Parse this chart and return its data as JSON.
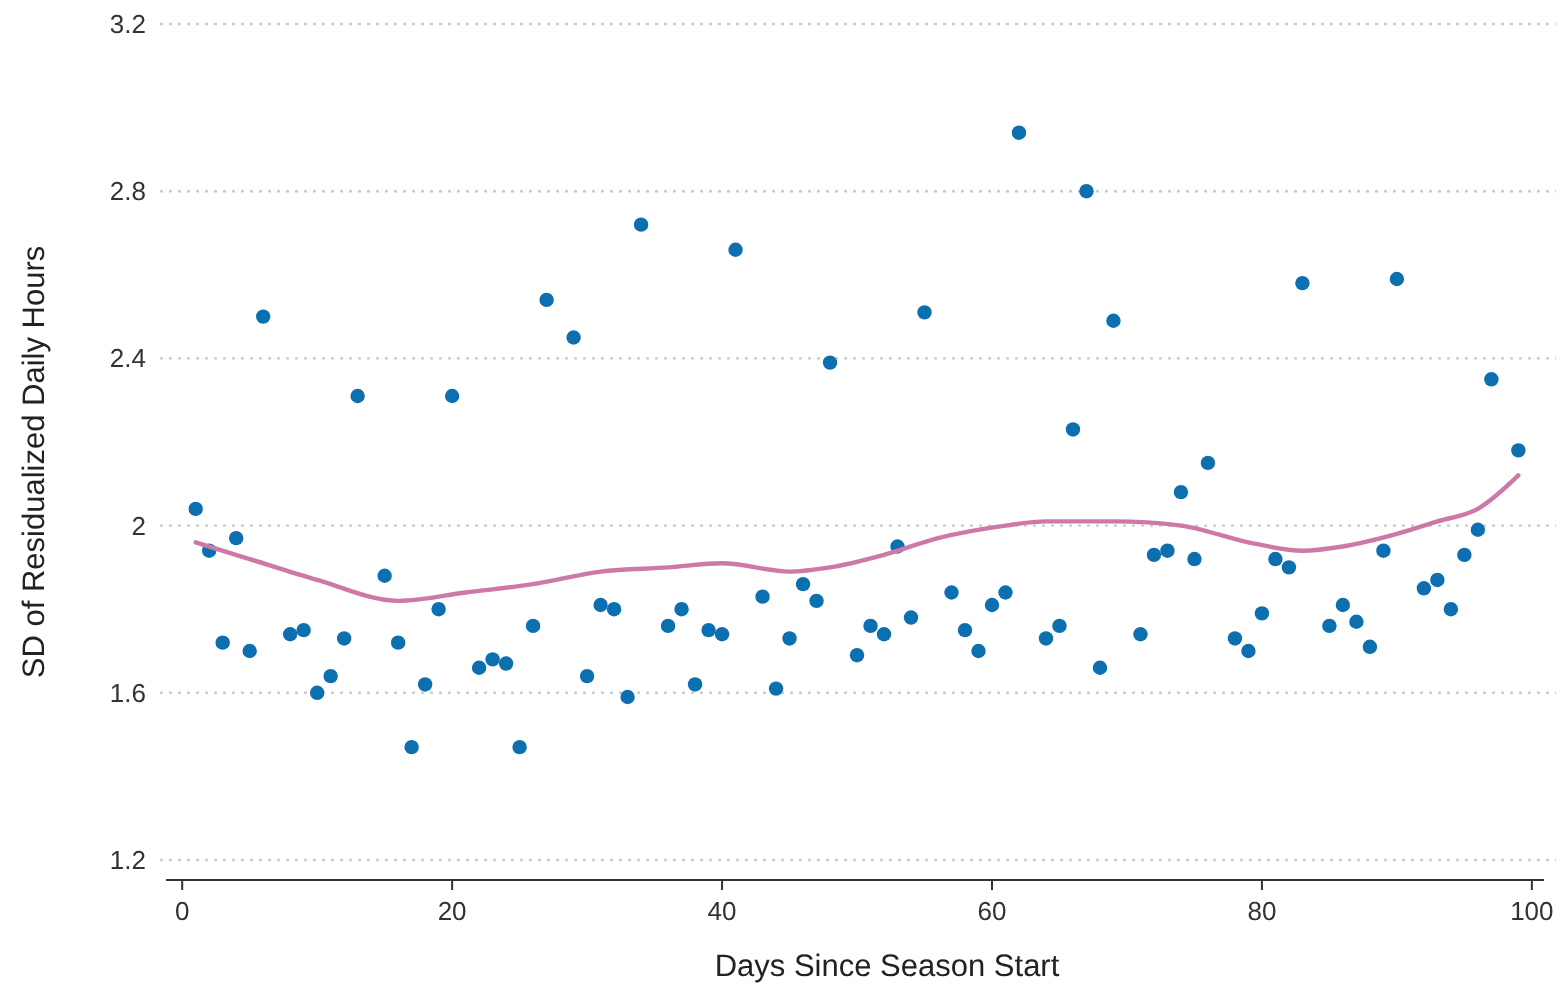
{
  "chart_data": {
    "type": "scatter",
    "xlabel": "Days Since Season Start",
    "ylabel": "SD of Residualized Daily Hours",
    "xlim": [
      -1.2,
      100.9
    ],
    "xticks": [
      0,
      20,
      40,
      60,
      80,
      100
    ],
    "ylim": [
      1.2,
      3.2
    ],
    "yticks": [
      1.2,
      1.6,
      2,
      2.4,
      2.8,
      3.2
    ],
    "grid": "y",
    "series": [
      {
        "marker": "circle",
        "color": "#0b6fb0",
        "x": [
          1,
          2,
          3,
          4,
          5,
          6,
          8,
          9,
          10,
          11,
          12,
          13,
          15,
          16,
          17,
          18,
          19,
          20,
          22,
          23,
          24,
          25,
          26,
          27,
          29,
          30,
          31,
          32,
          33,
          34,
          36,
          37,
          38,
          39,
          40,
          41,
          43,
          44,
          45,
          46,
          47,
          48,
          50,
          51,
          52,
          53,
          54,
          55,
          57,
          58,
          59,
          60,
          61,
          62,
          64,
          65,
          66,
          67,
          68,
          69,
          71,
          72,
          73,
          74,
          75,
          76,
          78,
          79,
          80,
          81,
          82,
          83,
          85,
          86,
          87,
          88,
          89,
          90,
          92,
          93,
          94,
          95,
          96,
          97,
          99
        ],
        "values": [
          2.04,
          1.94,
          1.72,
          1.97,
          1.7,
          2.5,
          1.74,
          1.75,
          1.6,
          1.64,
          1.73,
          2.31,
          1.88,
          1.72,
          1.47,
          1.62,
          1.8,
          2.31,
          1.66,
          1.68,
          1.67,
          1.47,
          1.76,
          2.54,
          2.45,
          1.64,
          1.81,
          1.8,
          1.59,
          2.72,
          1.76,
          1.8,
          1.62,
          1.75,
          1.74,
          2.66,
          1.83,
          1.61,
          1.73,
          1.86,
          1.82,
          2.39,
          1.69,
          1.76,
          1.74,
          1.95,
          1.78,
          2.51,
          1.84,
          1.75,
          1.7,
          1.81,
          1.84,
          2.94,
          1.73,
          1.76,
          2.23,
          2.8,
          1.66,
          2.49,
          1.74,
          1.93,
          1.94,
          2.08,
          1.92,
          2.15,
          1.73,
          1.7,
          1.79,
          1.92,
          1.9,
          2.58,
          1.76,
          1.81,
          1.77,
          1.71,
          1.94,
          2.59,
          1.85,
          1.87,
          1.8,
          1.93,
          1.99,
          2.35,
          2.18
        ]
      },
      {
        "type": "line",
        "color": "#cc79a7",
        "x": [
          1,
          5,
          10,
          16,
          21,
          26,
          31,
          36,
          40,
          45,
          48,
          52,
          56,
          61,
          64,
          67,
          69,
          74,
          79,
          83,
          86,
          90,
          93,
          96,
          99
        ],
        "values": [
          1.96,
          1.92,
          1.87,
          1.82,
          1.84,
          1.86,
          1.89,
          1.9,
          1.91,
          1.89,
          1.9,
          1.93,
          1.97,
          2.0,
          2.01,
          2.01,
          2.01,
          2.0,
          1.96,
          1.94,
          1.95,
          1.98,
          2.01,
          2.04,
          2.12
        ]
      }
    ]
  }
}
